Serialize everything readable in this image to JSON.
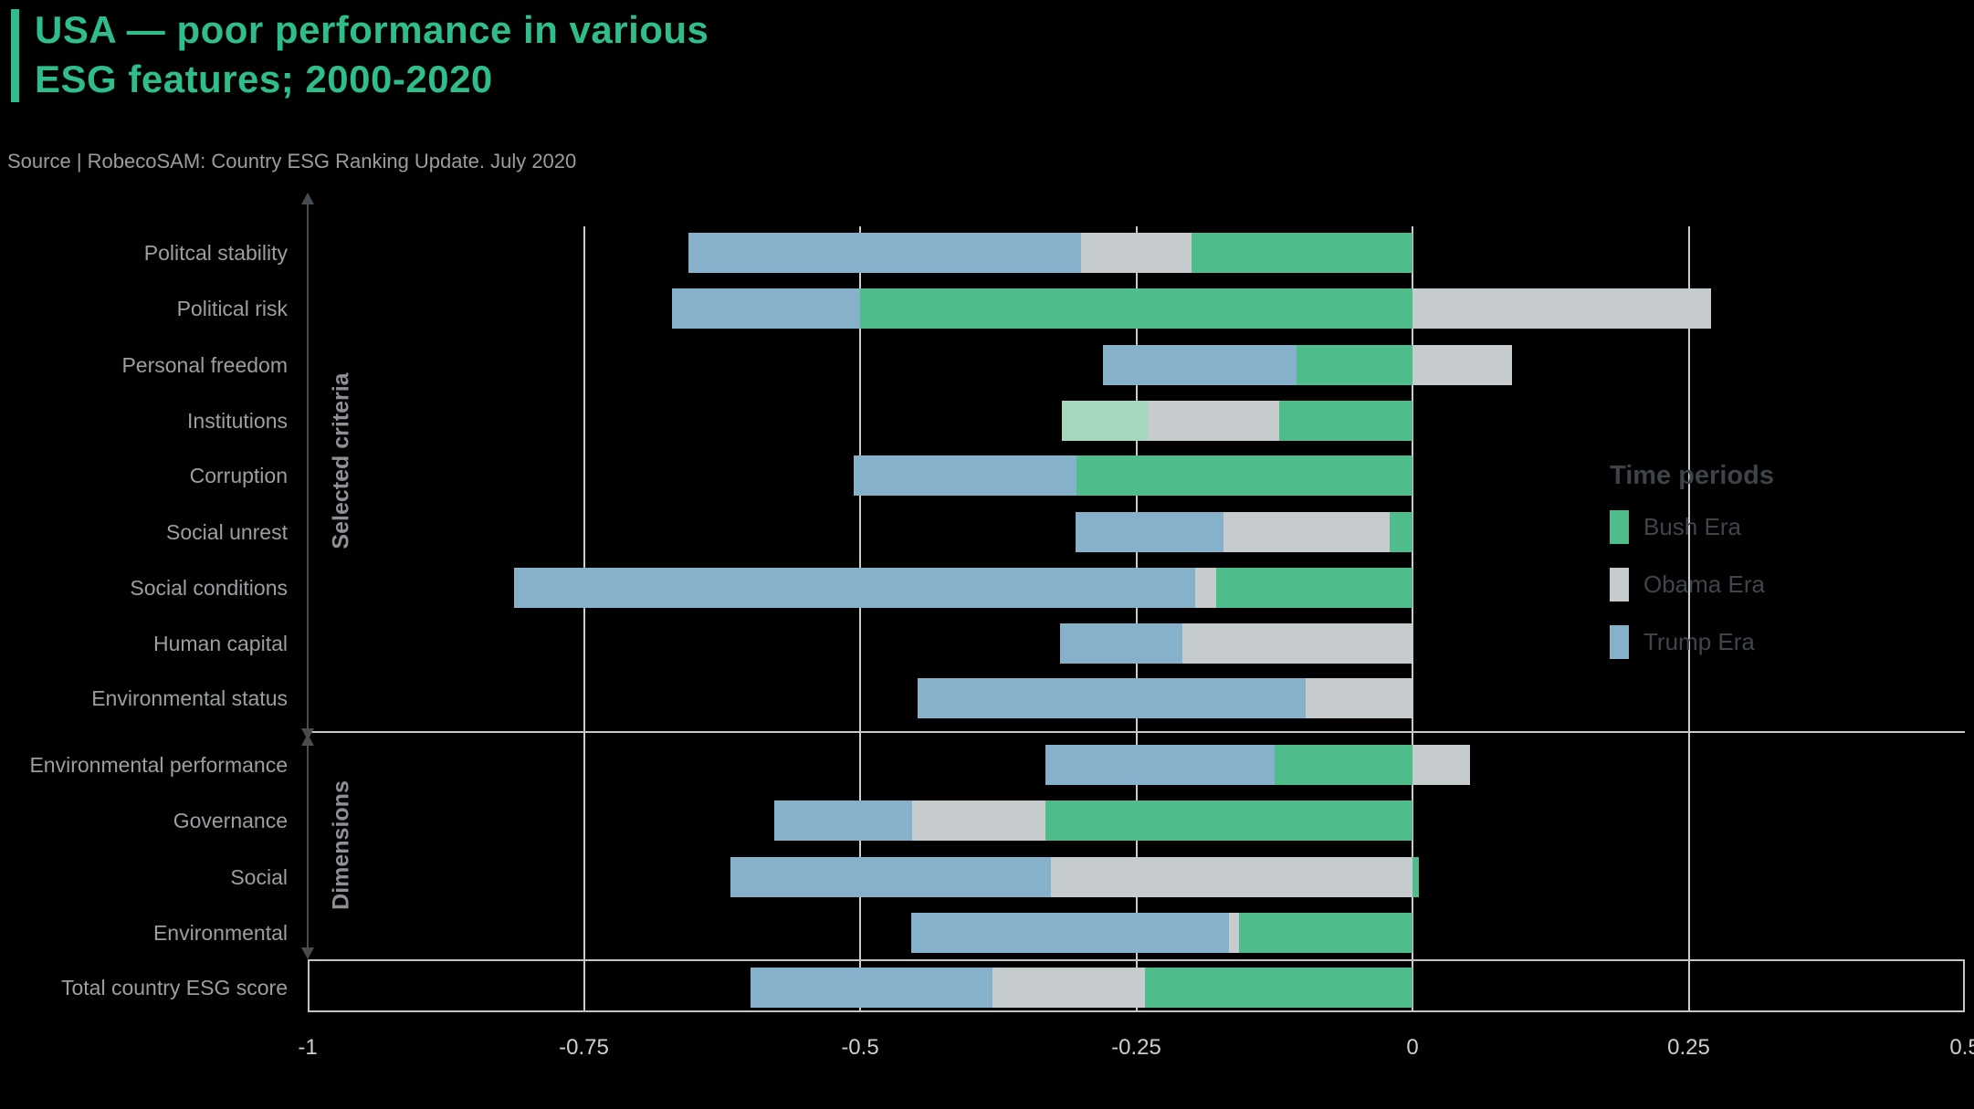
{
  "title": {
    "line1": "USA — poor performance in various",
    "line2": "ESG features; 2000-2020"
  },
  "source": "Source | RobecoSAM: Country ESG Ranking Update. July 2020",
  "colors": {
    "accent": "#2ebd8b",
    "bush": "#4fbc8c",
    "bush_light": "#a3d8bf",
    "obama": "#c6cbce",
    "trump": "#85b2ca",
    "gridline": "#c9cbcc"
  },
  "legend": {
    "title": "Time periods",
    "items": [
      {
        "label": "Bush Era",
        "color": "bush"
      },
      {
        "label": "Obama Era",
        "color": "obama"
      },
      {
        "label": "Trump Era",
        "color": "trump"
      }
    ]
  },
  "groups": [
    {
      "label": "Selected criteria"
    },
    {
      "label": "Dimensions"
    }
  ],
  "chart_data": {
    "type": "bar",
    "orientation": "horizontal",
    "stacked": true,
    "xlim": [
      -1,
      0.5
    ],
    "xticks": [
      -1,
      -0.75,
      -0.5,
      -0.25,
      0,
      0.25,
      0.5
    ],
    "xtick_labels": [
      "-1",
      "-0.75",
      "-0.5",
      "-0.25",
      "0",
      "0.25",
      "0.5"
    ],
    "grid": true,
    "legend_position": "right",
    "rows": [
      {
        "label": "Politcal stability",
        "group": "Selected criteria",
        "segments": [
          {
            "era": "Trump Era",
            "color": "trump",
            "from": -0.655,
            "to": -0.3
          },
          {
            "era": "Obama Era",
            "color": "obama",
            "from": -0.3,
            "to": -0.2
          },
          {
            "era": "Bush Era",
            "color": "bush",
            "from": -0.2,
            "to": 0
          }
        ]
      },
      {
        "label": "Political risk",
        "group": "Selected criteria",
        "segments": [
          {
            "era": "Trump Era",
            "color": "trump",
            "from": -0.67,
            "to": -0.5
          },
          {
            "era": "Bush Era",
            "color": "bush",
            "from": -0.5,
            "to": 0
          },
          {
            "era": "Obama Era",
            "color": "obama",
            "from": 0,
            "to": 0.27
          }
        ]
      },
      {
        "label": "Personal freedom",
        "group": "Selected criteria",
        "segments": [
          {
            "era": "Trump Era",
            "color": "trump",
            "from": -0.28,
            "to": -0.105
          },
          {
            "era": "Bush Era",
            "color": "bush",
            "from": -0.105,
            "to": 0
          },
          {
            "era": "Obama Era",
            "color": "obama",
            "from": 0,
            "to": 0.09
          }
        ]
      },
      {
        "label": "Institutions",
        "group": "Selected criteria",
        "segments": [
          {
            "era": "Bush Era",
            "color": "bush_light",
            "from": -0.317,
            "to": -0.24
          },
          {
            "era": "Obama Era",
            "color": "obama",
            "from": -0.24,
            "to": -0.121
          },
          {
            "era": "Bush Era",
            "color": "bush",
            "from": -0.121,
            "to": 0
          }
        ]
      },
      {
        "label": "Corruption",
        "group": "Selected criteria",
        "segments": [
          {
            "era": "Trump Era",
            "color": "trump",
            "from": -0.506,
            "to": -0.304
          },
          {
            "era": "Bush Era",
            "color": "bush",
            "from": -0.304,
            "to": 0
          }
        ]
      },
      {
        "label": "Social unrest",
        "group": "Selected criteria",
        "segments": [
          {
            "era": "Trump Era",
            "color": "trump",
            "from": -0.305,
            "to": -0.171
          },
          {
            "era": "Obama Era",
            "color": "obama",
            "from": -0.171,
            "to": -0.021
          },
          {
            "era": "Bush Era",
            "color": "bush",
            "from": -0.021,
            "to": 0
          }
        ]
      },
      {
        "label": "Social conditions",
        "group": "Selected criteria",
        "segments": [
          {
            "era": "Trump Era",
            "color": "trump",
            "from": -0.813,
            "to": -0.197
          },
          {
            "era": "Obama Era",
            "color": "obama",
            "from": -0.197,
            "to": -0.178
          },
          {
            "era": "Bush Era",
            "color": "bush",
            "from": -0.178,
            "to": 0
          }
        ]
      },
      {
        "label": "Human capital",
        "group": "Selected criteria",
        "segments": [
          {
            "era": "Trump Era",
            "color": "trump",
            "from": -0.319,
            "to": -0.208
          },
          {
            "era": "Obama Era",
            "color": "obama",
            "from": -0.208,
            "to": 0
          }
        ]
      },
      {
        "label": "Environmental status",
        "group": "Selected criteria",
        "segments": [
          {
            "era": "Trump Era",
            "color": "trump",
            "from": -0.448,
            "to": -0.097
          },
          {
            "era": "Obama Era",
            "color": "obama",
            "from": -0.097,
            "to": 0
          }
        ]
      },
      {
        "label": "Environmental performance",
        "group": "Dimensions",
        "segments": [
          {
            "era": "Trump Era",
            "color": "trump",
            "from": -0.332,
            "to": -0.125
          },
          {
            "era": "Bush Era",
            "color": "bush",
            "from": -0.125,
            "to": 0
          },
          {
            "era": "Obama Era",
            "color": "obama",
            "from": 0,
            "to": 0.052
          }
        ]
      },
      {
        "label": "Governance",
        "group": "Dimensions",
        "segments": [
          {
            "era": "Trump Era",
            "color": "trump",
            "from": -0.578,
            "to": -0.453
          },
          {
            "era": "Obama Era",
            "color": "obama",
            "from": -0.453,
            "to": -0.332
          },
          {
            "era": "Bush Era",
            "color": "bush",
            "from": -0.332,
            "to": 0
          }
        ]
      },
      {
        "label": "Social",
        "group": "Dimensions",
        "segments": [
          {
            "era": "Trump Era",
            "color": "trump",
            "from": -0.617,
            "to": -0.327
          },
          {
            "era": "Obama Era",
            "color": "obama",
            "from": -0.327,
            "to": 0
          },
          {
            "era": "Bush Era",
            "color": "bush",
            "from": 0,
            "to": 0.006
          }
        ]
      },
      {
        "label": "Environmental",
        "group": "Dimensions",
        "segments": [
          {
            "era": "Trump Era",
            "color": "trump",
            "from": -0.454,
            "to": -0.166
          },
          {
            "era": "Obama Era",
            "color": "obama",
            "from": -0.166,
            "to": -0.157
          },
          {
            "era": "Bush Era",
            "color": "bush",
            "from": -0.157,
            "to": 0
          }
        ]
      },
      {
        "label": "Total country ESG score",
        "group": "Total",
        "segments": [
          {
            "era": "Trump Era",
            "color": "trump",
            "from": -0.599,
            "to": -0.38
          },
          {
            "era": "Obama Era",
            "color": "obama",
            "from": -0.38,
            "to": -0.242
          },
          {
            "era": "Bush Era",
            "color": "bush",
            "from": -0.242,
            "to": 0
          }
        ]
      }
    ]
  }
}
